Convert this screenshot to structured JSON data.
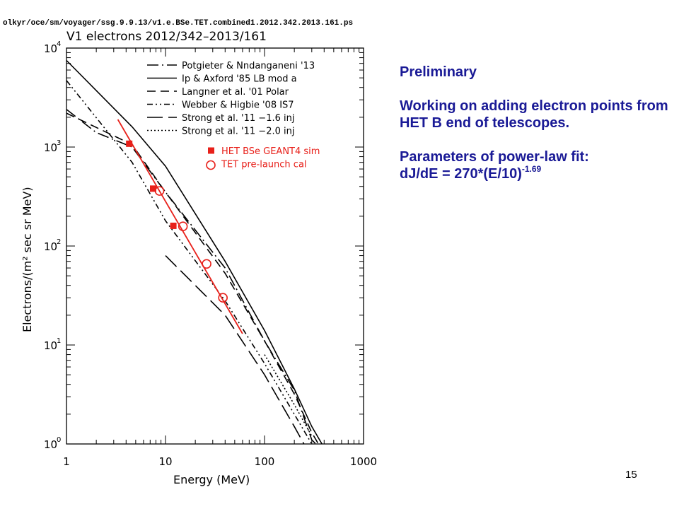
{
  "file_path": "olkyr/oce/sm/voyager/ssg.9.9.13/v1.e.BSe.TET.combined1.2012.342.2013.161.ps",
  "panel": {
    "line1": "Preliminary",
    "line2": "Working on adding electron points from HET B end of telescopes.",
    "line3_title": "Parameters of power-law fit:",
    "line3_formula_base": "dJ/dE = 270*(E/10)",
    "line3_formula_exp": "-1.69"
  },
  "page_number": "15",
  "colors": {
    "data": "#e8201a",
    "model": "#000000"
  },
  "chart_data": {
    "type": "line",
    "title": "V1 electrons 2012/342–2013/161",
    "xlabel": "Energy (MeV)",
    "ylabel": "Electrons/(m² sec sr MeV)",
    "xscale": "log",
    "yscale": "log",
    "xlim": [
      1,
      1000
    ],
    "ylim": [
      1,
      10000
    ],
    "x_ticks": [
      1,
      10,
      100,
      1000
    ],
    "x_tick_labels": [
      "1",
      "10",
      "100",
      "1000"
    ],
    "y_ticks": [
      1,
      10,
      100,
      1000,
      10000
    ],
    "y_tick_labels": [
      {
        "base": "10",
        "exp": "0"
      },
      {
        "base": "10",
        "exp": "1"
      },
      {
        "base": "10",
        "exp": "2"
      },
      {
        "base": "10",
        "exp": "3"
      },
      {
        "base": "10",
        "exp": "4"
      }
    ],
    "legend_position": "top-right",
    "series": [
      {
        "name": "Potgieter & Nndanganeni '13",
        "style": "dash-dot",
        "color": "#000000",
        "points": [
          [
            1,
            2400
          ],
          [
            2,
            1400
          ],
          [
            4.6,
            1000
          ],
          [
            10,
            350
          ],
          [
            40,
            60
          ],
          [
            100,
            11
          ],
          [
            200,
            3.5
          ],
          [
            300,
            1.1
          ],
          [
            330,
            1
          ]
        ]
      },
      {
        "name": "Ip & Axford '85 LB mod a",
        "style": "solid",
        "color": "#000000",
        "points": [
          [
            1,
            7500
          ],
          [
            4.6,
            1600
          ],
          [
            10,
            640
          ],
          [
            40,
            70
          ],
          [
            100,
            14
          ],
          [
            200,
            3.6
          ],
          [
            300,
            1.5
          ],
          [
            380,
            1
          ]
        ]
      },
      {
        "name": "Langner et al. '01 Polar",
        "style": "dashed",
        "color": "#000000",
        "points": [
          [
            1,
            2200
          ],
          [
            4.6,
            1060
          ],
          [
            10,
            350
          ],
          [
            40,
            53
          ],
          [
            100,
            11
          ],
          [
            200,
            3.2
          ],
          [
            300,
            1.3
          ],
          [
            350,
            1
          ]
        ]
      },
      {
        "name": "Webber & Higbie '08 IS7",
        "style": "dash-dot-dot",
        "color": "#000000",
        "points": [
          [
            1,
            4700
          ],
          [
            4.6,
            700
          ],
          [
            10,
            180
          ],
          [
            40,
            28
          ],
          [
            100,
            6.5
          ],
          [
            200,
            2.0
          ],
          [
            300,
            1.0
          ]
        ]
      },
      {
        "name": "Strong et al. '11 −1.6 inj",
        "style": "long-dash",
        "color": "#000000",
        "points": [
          [
            10,
            80
          ],
          [
            40,
            20
          ],
          [
            100,
            5
          ],
          [
            200,
            1.5
          ],
          [
            250,
            1
          ]
        ]
      },
      {
        "name": "Strong et al. '11 −2.0 inj",
        "style": "dotted",
        "color": "#000000",
        "points": [
          [
            100,
            8
          ],
          [
            200,
            2.5
          ],
          [
            300,
            1.2
          ]
        ]
      },
      {
        "name": "HET BSe GEANT4 sim",
        "style": "filled-square",
        "color": "#e8201a",
        "points": [
          [
            4.3,
            1080
          ],
          [
            7.5,
            380
          ],
          [
            12,
            160
          ]
        ]
      },
      {
        "name": "TET pre-launch cal",
        "style": "open-circle",
        "color": "#e8201a",
        "points": [
          [
            8.7,
            360
          ],
          [
            15,
            158
          ],
          [
            26,
            66
          ],
          [
            38,
            30
          ]
        ]
      },
      {
        "name": "",
        "style": "fit",
        "color": "#e8201a",
        "points": [
          [
            3.3,
            1900
          ],
          [
            60,
            13
          ]
        ]
      }
    ]
  }
}
